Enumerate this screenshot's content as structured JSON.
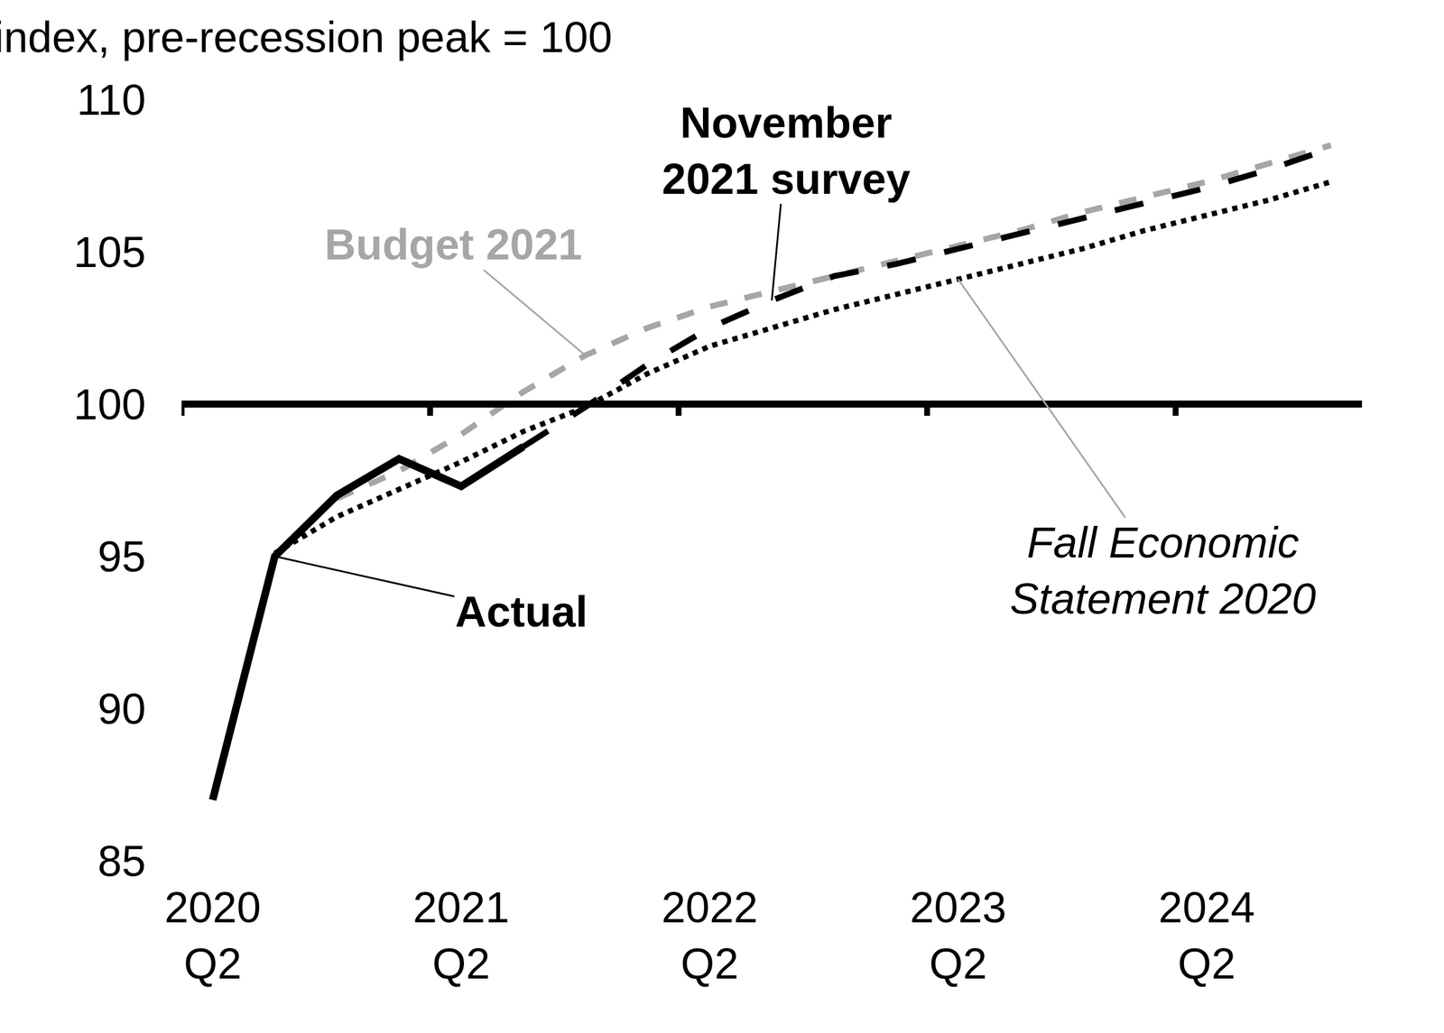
{
  "chart_data": {
    "type": "line",
    "y_label": "index, pre-recession peak = 100",
    "categories": [
      "2020\nQ2",
      null,
      null,
      null,
      "2021\nQ2",
      null,
      null,
      null,
      "2022\nQ2",
      null,
      null,
      null,
      "2023\nQ2",
      null,
      null,
      null,
      "2024\nQ2",
      null,
      null
    ],
    "ylim": [
      85,
      110
    ],
    "yticks": [
      85,
      90,
      95,
      100,
      105,
      110
    ],
    "reference_line": 100,
    "grid": false,
    "series": [
      {
        "name": "Budget 2021",
        "color": "#a6a6a6",
        "line_style": "dashed",
        "values": [
          null,
          null,
          96.9,
          97.8,
          99.0,
          100.4,
          101.6,
          102.5,
          103.2,
          103.7,
          104.2,
          104.7,
          105.2,
          105.7,
          106.3,
          106.8,
          107.3,
          107.9,
          108.5
        ]
      },
      {
        "name": "Fall Economic\nStatement 2020",
        "color": "#000000",
        "line_style": "dotted",
        "values": [
          null,
          95.1,
          96.3,
          97.2,
          98.1,
          99.1,
          99.9,
          101.0,
          101.9,
          102.5,
          103.1,
          103.6,
          104.1,
          104.6,
          105.1,
          105.7,
          106.2,
          106.7,
          107.3
        ]
      },
      {
        "name": "November\n2021 survey",
        "color": "#000000",
        "line_style": "long-dashed",
        "values": [
          null,
          null,
          null,
          null,
          null,
          98.6,
          99.9,
          101.3,
          102.5,
          103.4,
          104.2,
          104.6,
          105.1,
          105.6,
          106.1,
          106.6,
          107.1,
          107.7,
          108.4
        ]
      },
      {
        "name": "Actual",
        "color": "#000000",
        "line_style": "solid",
        "values": [
          87,
          95,
          97.0,
          98.2,
          97.3,
          98.6,
          null,
          null,
          null,
          null,
          null,
          null,
          null,
          null,
          null,
          null,
          null,
          null,
          null
        ]
      }
    ]
  }
}
